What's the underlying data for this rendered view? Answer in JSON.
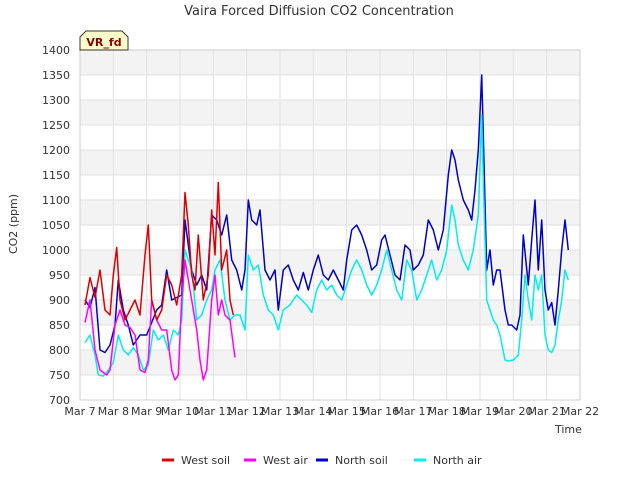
{
  "chart_data": {
    "type": "line",
    "title": "Vaira Forced Diffusion CO2 Concentration",
    "xlabel": "Time",
    "ylabel": "CO2 (ppm)",
    "badge": "VR_fd",
    "xlim": [
      7,
      22
    ],
    "ylim": [
      700,
      1400
    ],
    "x_ticks": [
      {
        "value": 7,
        "label": "Mar 7"
      },
      {
        "value": 8,
        "label": "Mar 8"
      },
      {
        "value": 9,
        "label": "Mar 9"
      },
      {
        "value": 10,
        "label": "Mar 10"
      },
      {
        "value": 11,
        "label": "Mar 11"
      },
      {
        "value": 12,
        "label": "Mar 12"
      },
      {
        "value": 13,
        "label": "Mar 13"
      },
      {
        "value": 14,
        "label": "Mar 14"
      },
      {
        "value": 15,
        "label": "Mar 15"
      },
      {
        "value": 16,
        "label": "Mar 16"
      },
      {
        "value": 17,
        "label": "Mar 17"
      },
      {
        "value": 18,
        "label": "Mar 18"
      },
      {
        "value": 19,
        "label": "Mar 19"
      },
      {
        "value": 20,
        "label": "Mar 20"
      },
      {
        "value": 21,
        "label": "Mar 21"
      },
      {
        "value": 22,
        "label": "Mar 22"
      }
    ],
    "y_ticks": [
      "700",
      "750",
      "800",
      "850",
      "900",
      "950",
      "1000",
      "1050",
      "1100",
      "1150",
      "1200",
      "1250",
      "1300",
      "1350",
      "1400"
    ],
    "grid": true,
    "legend_position": "bottom",
    "series": [
      {
        "name": "West soil",
        "color": "#dd0000",
        "points": [
          [
            7.15,
            890
          ],
          [
            7.3,
            945
          ],
          [
            7.45,
            905
          ],
          [
            7.6,
            960
          ],
          [
            7.75,
            880
          ],
          [
            7.9,
            870
          ],
          [
            8.0,
            950
          ],
          [
            8.1,
            1005
          ],
          [
            8.2,
            900
          ],
          [
            8.35,
            860
          ],
          [
            8.5,
            880
          ],
          [
            8.65,
            900
          ],
          [
            8.8,
            870
          ],
          [
            8.95,
            990
          ],
          [
            9.05,
            1050
          ],
          [
            9.15,
            900
          ],
          [
            9.3,
            860
          ],
          [
            9.45,
            880
          ],
          [
            9.6,
            950
          ],
          [
            9.75,
            930
          ],
          [
            9.9,
            890
          ],
          [
            10.05,
            950
          ],
          [
            10.15,
            1115
          ],
          [
            10.25,
            1050
          ],
          [
            10.35,
            950
          ],
          [
            10.45,
            920
          ],
          [
            10.55,
            1030
          ],
          [
            10.7,
            900
          ],
          [
            10.85,
            950
          ],
          [
            10.95,
            1080
          ],
          [
            11.05,
            990
          ],
          [
            11.15,
            1135
          ],
          [
            11.25,
            960
          ],
          [
            11.4,
            1000
          ],
          [
            11.5,
            900
          ],
          [
            11.6,
            870
          ]
        ]
      },
      {
        "name": "West air",
        "color": "#ff00ff",
        "points": [
          [
            7.15,
            855
          ],
          [
            7.3,
            900
          ],
          [
            7.45,
            800
          ],
          [
            7.6,
            760
          ],
          [
            7.8,
            750
          ],
          [
            7.9,
            760
          ],
          [
            8.05,
            850
          ],
          [
            8.2,
            880
          ],
          [
            8.35,
            850
          ],
          [
            8.5,
            845
          ],
          [
            8.65,
            830
          ],
          [
            8.8,
            760
          ],
          [
            8.95,
            755
          ],
          [
            9.05,
            780
          ],
          [
            9.15,
            900
          ],
          [
            9.3,
            860
          ],
          [
            9.45,
            840
          ],
          [
            9.6,
            840
          ],
          [
            9.75,
            760
          ],
          [
            9.85,
            740
          ],
          [
            9.95,
            750
          ],
          [
            10.05,
            900
          ],
          [
            10.15,
            980
          ],
          [
            10.25,
            940
          ],
          [
            10.35,
            900
          ],
          [
            10.5,
            840
          ],
          [
            10.6,
            780
          ],
          [
            10.7,
            740
          ],
          [
            10.8,
            760
          ],
          [
            10.95,
            900
          ],
          [
            11.05,
            950
          ],
          [
            11.15,
            870
          ],
          [
            11.25,
            900
          ],
          [
            11.35,
            870
          ],
          [
            11.5,
            860
          ],
          [
            11.65,
            785
          ]
        ]
      },
      {
        "name": "North soil",
        "color": "#0000cc",
        "points": [
          [
            7.15,
            900
          ],
          [
            7.3,
            885
          ],
          [
            7.45,
            925
          ],
          [
            7.6,
            800
          ],
          [
            7.75,
            795
          ],
          [
            7.9,
            810
          ],
          [
            8.05,
            850
          ],
          [
            8.15,
            940
          ],
          [
            8.3,
            880
          ],
          [
            8.45,
            850
          ],
          [
            8.6,
            810
          ],
          [
            8.8,
            830
          ],
          [
            9.0,
            830
          ],
          [
            9.15,
            855
          ],
          [
            9.3,
            880
          ],
          [
            9.45,
            890
          ],
          [
            9.6,
            960
          ],
          [
            9.75,
            900
          ],
          [
            9.9,
            905
          ],
          [
            10.05,
            910
          ],
          [
            10.15,
            1060
          ],
          [
            10.25,
            1010
          ],
          [
            10.35,
            960
          ],
          [
            10.5,
            930
          ],
          [
            10.65,
            950
          ],
          [
            10.8,
            920
          ],
          [
            10.95,
            1070
          ],
          [
            11.1,
            1060
          ],
          [
            11.25,
            1030
          ],
          [
            11.4,
            1070
          ],
          [
            11.55,
            980
          ],
          [
            11.7,
            960
          ],
          [
            11.85,
            920
          ],
          [
            11.95,
            960
          ],
          [
            12.05,
            1100
          ],
          [
            12.15,
            1060
          ],
          [
            12.3,
            1050
          ],
          [
            12.4,
            1080
          ],
          [
            12.55,
            960
          ],
          [
            12.7,
            940
          ],
          [
            12.85,
            960
          ],
          [
            12.95,
            880
          ],
          [
            13.1,
            960
          ],
          [
            13.25,
            970
          ],
          [
            13.4,
            940
          ],
          [
            13.55,
            920
          ],
          [
            13.7,
            955
          ],
          [
            13.85,
            920
          ],
          [
            14.0,
            960
          ],
          [
            14.15,
            990
          ],
          [
            14.3,
            950
          ],
          [
            14.45,
            940
          ],
          [
            14.6,
            960
          ],
          [
            14.75,
            940
          ],
          [
            14.9,
            920
          ],
          [
            15.0,
            980
          ],
          [
            15.15,
            1040
          ],
          [
            15.3,
            1050
          ],
          [
            15.45,
            1030
          ],
          [
            15.6,
            1000
          ],
          [
            15.75,
            960
          ],
          [
            15.9,
            970
          ],
          [
            16.05,
            1020
          ],
          [
            16.15,
            1030
          ],
          [
            16.3,
            990
          ],
          [
            16.45,
            950
          ],
          [
            16.6,
            940
          ],
          [
            16.75,
            1010
          ],
          [
            16.9,
            1000
          ],
          [
            17.0,
            960
          ],
          [
            17.15,
            970
          ],
          [
            17.3,
            990
          ],
          [
            17.45,
            1060
          ],
          [
            17.6,
            1040
          ],
          [
            17.75,
            1000
          ],
          [
            17.9,
            1040
          ],
          [
            18.05,
            1150
          ],
          [
            18.15,
            1200
          ],
          [
            18.25,
            1180
          ],
          [
            18.35,
            1140
          ],
          [
            18.5,
            1100
          ],
          [
            18.65,
            1080
          ],
          [
            18.75,
            1060
          ],
          [
            18.85,
            1120
          ],
          [
            18.95,
            1200
          ],
          [
            19.05,
            1350
          ],
          [
            19.1,
            1230
          ],
          [
            19.2,
            960
          ],
          [
            19.3,
            1000
          ],
          [
            19.4,
            930
          ],
          [
            19.5,
            960
          ],
          [
            19.6,
            960
          ],
          [
            19.75,
            880
          ],
          [
            19.85,
            850
          ],
          [
            19.95,
            850
          ],
          [
            20.1,
            840
          ],
          [
            20.2,
            870
          ],
          [
            20.3,
            1030
          ],
          [
            20.45,
            930
          ],
          [
            20.55,
            1020
          ],
          [
            20.65,
            1100
          ],
          [
            20.75,
            960
          ],
          [
            20.85,
            1060
          ],
          [
            20.95,
            920
          ],
          [
            21.05,
            880
          ],
          [
            21.15,
            895
          ],
          [
            21.25,
            850
          ],
          [
            21.35,
            920
          ],
          [
            21.45,
            1000
          ],
          [
            21.55,
            1060
          ],
          [
            21.65,
            1000
          ]
        ]
      },
      {
        "name": "North air",
        "color": "#00eeee",
        "points": [
          [
            7.15,
            815
          ],
          [
            7.3,
            830
          ],
          [
            7.45,
            790
          ],
          [
            7.55,
            750
          ],
          [
            7.7,
            748
          ],
          [
            7.85,
            760
          ],
          [
            8.0,
            775
          ],
          [
            8.15,
            830
          ],
          [
            8.3,
            800
          ],
          [
            8.45,
            790
          ],
          [
            8.6,
            805
          ],
          [
            8.75,
            790
          ],
          [
            8.9,
            760
          ],
          [
            9.05,
            770
          ],
          [
            9.2,
            840
          ],
          [
            9.35,
            820
          ],
          [
            9.5,
            830
          ],
          [
            9.65,
            800
          ],
          [
            9.8,
            840
          ],
          [
            9.95,
            830
          ],
          [
            10.05,
            860
          ],
          [
            10.15,
            1000
          ],
          [
            10.25,
            980
          ],
          [
            10.35,
            960
          ],
          [
            10.5,
            860
          ],
          [
            10.65,
            870
          ],
          [
            10.8,
            900
          ],
          [
            10.95,
            920
          ],
          [
            11.05,
            960
          ],
          [
            11.2,
            980
          ],
          [
            11.35,
            900
          ],
          [
            11.5,
            860
          ],
          [
            11.65,
            870
          ],
          [
            11.8,
            870
          ],
          [
            11.95,
            840
          ],
          [
            12.05,
            990
          ],
          [
            12.2,
            960
          ],
          [
            12.35,
            970
          ],
          [
            12.5,
            910
          ],
          [
            12.65,
            880
          ],
          [
            12.8,
            870
          ],
          [
            12.95,
            840
          ],
          [
            13.1,
            880
          ],
          [
            13.3,
            890
          ],
          [
            13.5,
            910
          ],
          [
            13.65,
            900
          ],
          [
            13.8,
            890
          ],
          [
            13.95,
            875
          ],
          [
            14.1,
            920
          ],
          [
            14.25,
            940
          ],
          [
            14.4,
            920
          ],
          [
            14.55,
            930
          ],
          [
            14.7,
            910
          ],
          [
            14.85,
            900
          ],
          [
            15.0,
            930
          ],
          [
            15.15,
            960
          ],
          [
            15.3,
            980
          ],
          [
            15.45,
            960
          ],
          [
            15.6,
            930
          ],
          [
            15.75,
            910
          ],
          [
            15.9,
            930
          ],
          [
            16.05,
            960
          ],
          [
            16.2,
            1000
          ],
          [
            16.35,
            960
          ],
          [
            16.5,
            920
          ],
          [
            16.65,
            900
          ],
          [
            16.8,
            980
          ],
          [
            16.95,
            960
          ],
          [
            17.1,
            900
          ],
          [
            17.25,
            920
          ],
          [
            17.4,
            950
          ],
          [
            17.55,
            980
          ],
          [
            17.7,
            940
          ],
          [
            17.85,
            960
          ],
          [
            18.0,
            1000
          ],
          [
            18.15,
            1090
          ],
          [
            18.25,
            1060
          ],
          [
            18.35,
            1010
          ],
          [
            18.5,
            980
          ],
          [
            18.65,
            960
          ],
          [
            18.8,
            1000
          ],
          [
            18.95,
            1070
          ],
          [
            19.05,
            1270
          ],
          [
            19.1,
            1140
          ],
          [
            19.2,
            900
          ],
          [
            19.3,
            880
          ],
          [
            19.4,
            860
          ],
          [
            19.5,
            850
          ],
          [
            19.6,
            830
          ],
          [
            19.75,
            780
          ],
          [
            19.85,
            778
          ],
          [
            20.0,
            780
          ],
          [
            20.15,
            790
          ],
          [
            20.25,
            860
          ],
          [
            20.35,
            950
          ],
          [
            20.45,
            900
          ],
          [
            20.55,
            860
          ],
          [
            20.65,
            950
          ],
          [
            20.75,
            920
          ],
          [
            20.85,
            950
          ],
          [
            20.95,
            830
          ],
          [
            21.05,
            800
          ],
          [
            21.15,
            795
          ],
          [
            21.25,
            810
          ],
          [
            21.35,
            860
          ],
          [
            21.45,
            900
          ],
          [
            21.55,
            960
          ],
          [
            21.65,
            940
          ]
        ]
      }
    ]
  }
}
